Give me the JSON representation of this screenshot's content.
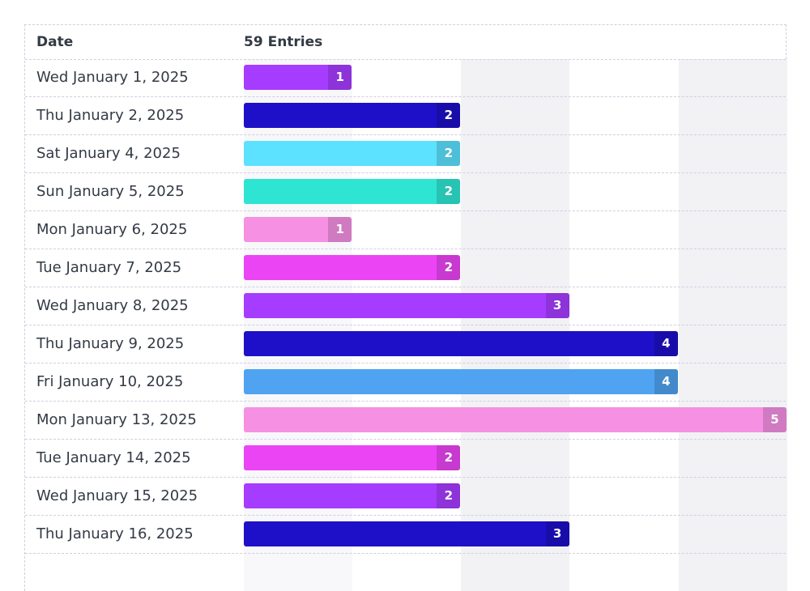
{
  "header": {
    "date_label": "Date",
    "entries_label": "59 Entries"
  },
  "chart_data": {
    "type": "bar",
    "orientation": "horizontal",
    "xlim": [
      0,
      5
    ],
    "categories": [
      "Wed January 1, 2025",
      "Thu January 2, 2025",
      "Sat January 4, 2025",
      "Sun January 5, 2025",
      "Mon January 6, 2025",
      "Tue January 7, 2025",
      "Wed January 8, 2025",
      "Thu January 9, 2025",
      "Fri January 10, 2025",
      "Mon January 13, 2025",
      "Tue January 14, 2025",
      "Wed January 15, 2025",
      "Thu January 16, 2025"
    ],
    "values": [
      1,
      2,
      2,
      2,
      1,
      2,
      3,
      4,
      4,
      5,
      2,
      2,
      3
    ],
    "colors": [
      "#a63cff",
      "#1e10c8",
      "#5ce1fe",
      "#2ee5d3",
      "#f590e3",
      "#eb44f5",
      "#a63cff",
      "#1e10c8",
      "#4fa3f1",
      "#f590e3",
      "#eb44f5",
      "#a63cff",
      "#1e10c8"
    ]
  }
}
